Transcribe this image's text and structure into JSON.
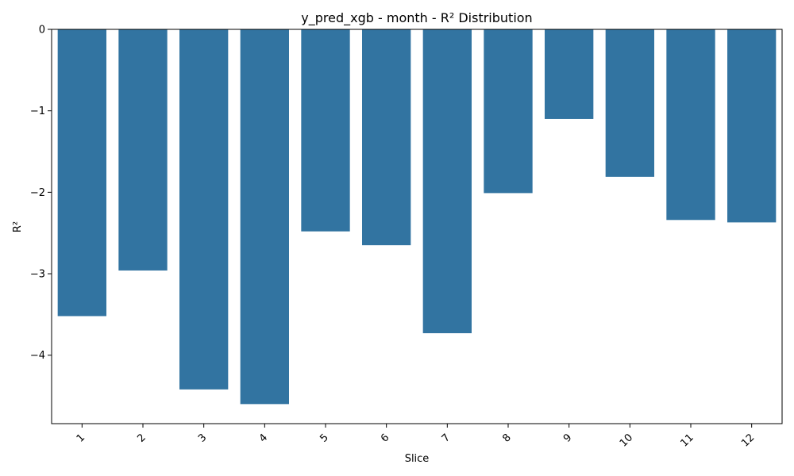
{
  "chart_data": {
    "type": "bar",
    "title": "y_pred_xgb - month - R² Distribution",
    "xlabel": "Slice",
    "ylabel": "R²",
    "categories": [
      "1",
      "2",
      "3",
      "4",
      "5",
      "6",
      "7",
      "8",
      "9",
      "10",
      "11",
      "12"
    ],
    "values": [
      -3.52,
      -2.96,
      -4.42,
      -4.6,
      -2.48,
      -2.65,
      -3.73,
      -2.01,
      -1.1,
      -1.81,
      -2.34,
      -2.37
    ],
    "ylim": [
      -4.84,
      0
    ],
    "yticks": [
      0,
      -1,
      -2,
      -3,
      -4
    ],
    "ytick_labels": [
      "0",
      "−1",
      "−2",
      "−3",
      "−4"
    ],
    "bar_color": "#3274a1",
    "grid": false,
    "legend": "none"
  }
}
